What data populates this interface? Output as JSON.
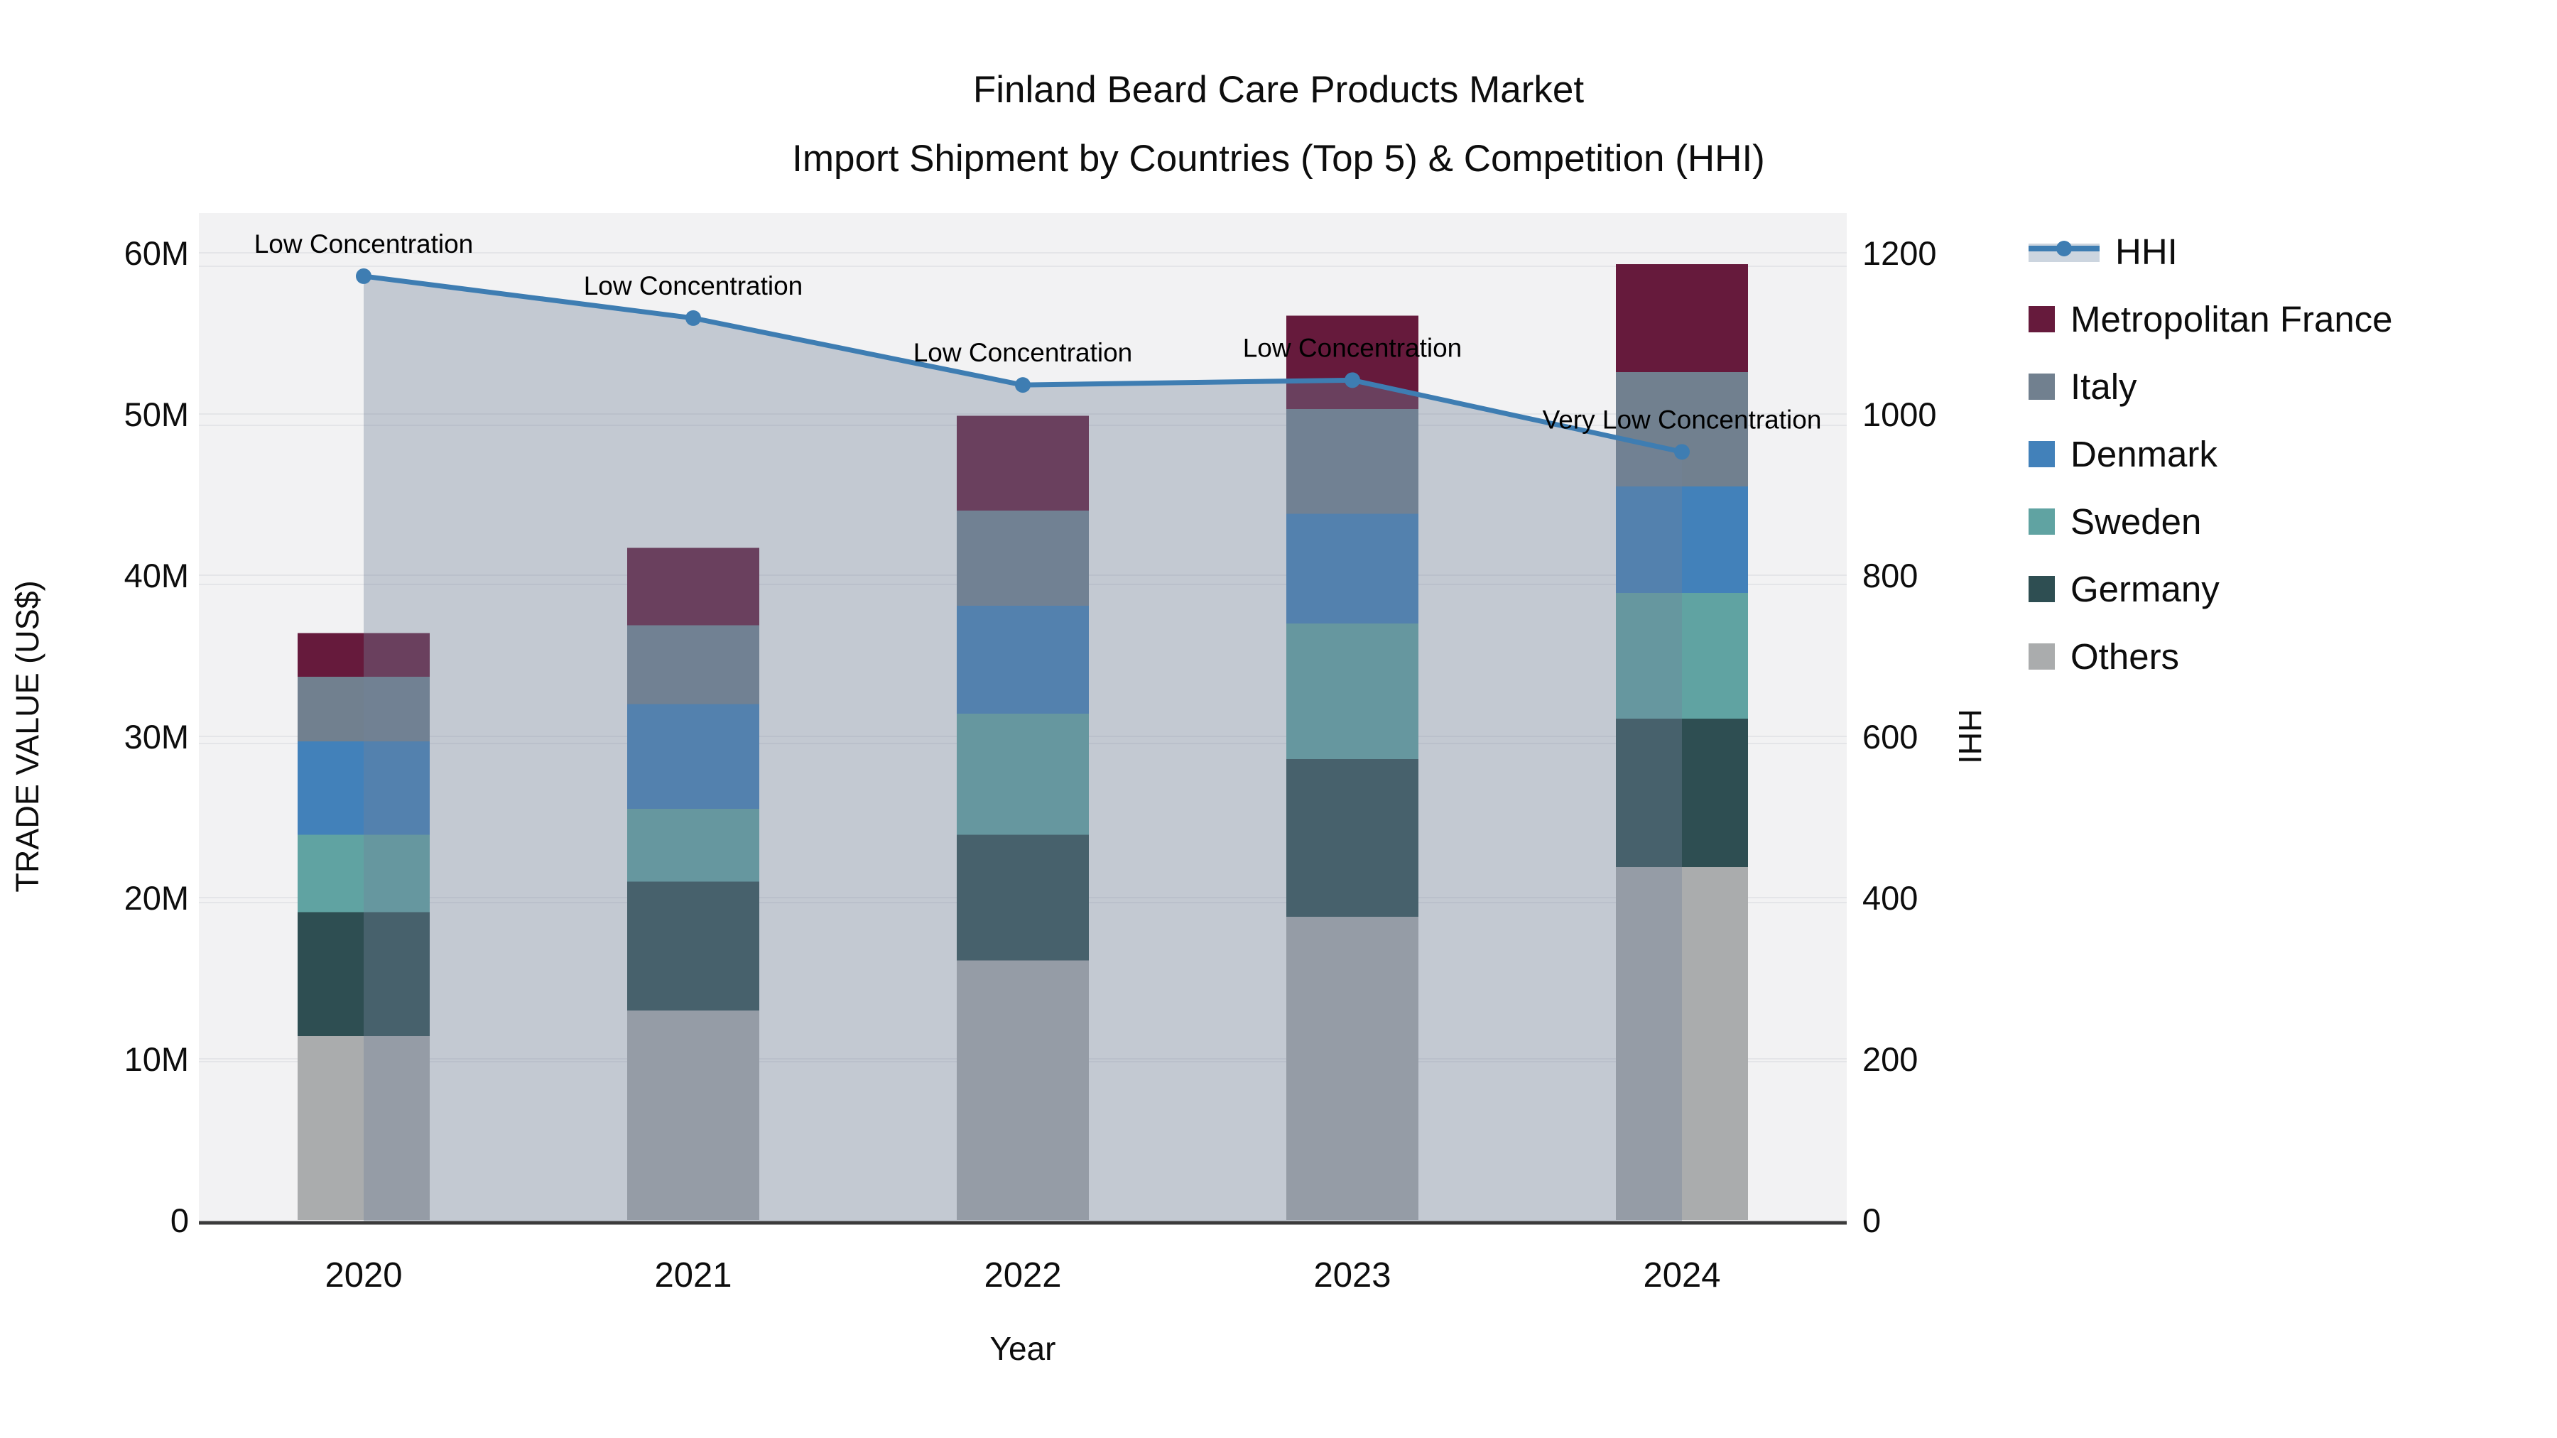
{
  "title": {
    "line1": "Finland Beard Care Products Market",
    "line2": "Import Shipment by Countries (Top 5) & Competition (HHI)"
  },
  "chart_data": {
    "type": "bar",
    "subtype": "stacked-bars-with-line-overlay",
    "title": "Finland Beard Care Products Market Import Shipment by Countries (Top 5) & Competition (HHI)",
    "categories": [
      "2020",
      "2021",
      "2022",
      "2023",
      "2024"
    ],
    "unit": "US$ millions",
    "stack_order_bottom_to_top": [
      "Others",
      "Germany",
      "Sweden",
      "Denmark",
      "Italy",
      "Metropolitan France"
    ],
    "series": [
      {
        "name": "Metropolitan France",
        "color": "#661a3c",
        "values": [
          2.7,
          4.8,
          5.9,
          5.8,
          6.7
        ]
      },
      {
        "name": "Italy",
        "color": "#71808f",
        "values": [
          4.0,
          4.9,
          5.9,
          6.5,
          7.1
        ]
      },
      {
        "name": "Denmark",
        "color": "#4281ba",
        "values": [
          5.8,
          6.5,
          6.7,
          6.8,
          6.6
        ]
      },
      {
        "name": "Sweden",
        "color": "#60a3a2",
        "values": [
          4.8,
          4.5,
          7.5,
          8.4,
          7.8
        ]
      },
      {
        "name": "Germany",
        "color": "#2e4e52",
        "values": [
          7.7,
          8.0,
          7.8,
          9.8,
          9.2
        ]
      },
      {
        "name": "Others",
        "color": "#aaacad",
        "values": [
          11.4,
          13.0,
          16.1,
          18.8,
          21.9
        ]
      }
    ],
    "bar_totals": [
      36.4,
      41.7,
      49.9,
      56.1,
      59.3
    ],
    "line_series": {
      "name": "HHI",
      "values": [
        1171,
        1119,
        1036,
        1042,
        953
      ],
      "color": "#3e7db2",
      "area_fill": "rgba(115,130,155,0.37)",
      "legend_band_color": "#ccd5df",
      "marker": "circle",
      "annotations": [
        "Low Concentration",
        "Low Concentration",
        "Low Concentration",
        "Low Concentration",
        "Very Low Concentration"
      ]
    },
    "xlabel": "Year",
    "ylabel_left": "TRADE VALUE (US$)",
    "ylabel_right": "HHI",
    "yticks_left": [
      "0",
      "10M",
      "20M",
      "30M",
      "40M",
      "50M",
      "60M"
    ],
    "yticks_right": [
      "0",
      "200",
      "400",
      "600",
      "800",
      "1000",
      "1200"
    ],
    "ylim_left": [
      0,
      60000000
    ],
    "ylim_right": [
      0,
      1200
    ],
    "grid": "on",
    "legend_position": "right",
    "plot_bg": "#f2f2f3",
    "grid_color": "#e4e5e8",
    "axis_line_color": "#3b3b3b",
    "text_color": "#0d0d0d"
  }
}
